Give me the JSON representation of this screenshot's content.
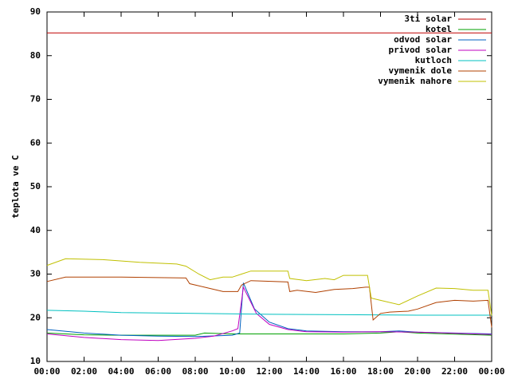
{
  "chart_data": {
    "type": "line",
    "y_label": "teplota ve C",
    "xlim": [
      0,
      24
    ],
    "xticks": [
      {
        "value": 0,
        "label": "00:00"
      },
      {
        "value": 2,
        "label": "02:00"
      },
      {
        "value": 4,
        "label": "04:00"
      },
      {
        "value": 6,
        "label": "06:00"
      },
      {
        "value": 8,
        "label": "08:00"
      },
      {
        "value": 10,
        "label": "10:00"
      },
      {
        "value": 12,
        "label": "12:00"
      },
      {
        "value": 14,
        "label": "14:00"
      },
      {
        "value": 16,
        "label": "16:00"
      },
      {
        "value": 18,
        "label": "18:00"
      },
      {
        "value": 20,
        "label": "20:00"
      },
      {
        "value": 22,
        "label": "22:00"
      },
      {
        "value": 24,
        "label": "00:00"
      }
    ],
    "ylim": [
      10,
      90
    ],
    "yticks": [
      10,
      20,
      30,
      40,
      50,
      60,
      70,
      80,
      90
    ],
    "grid": false,
    "legend": "top-right",
    "series": [
      {
        "name": "3ti solar",
        "color": "#c00000",
        "x": [
          0,
          24
        ],
        "values": [
          85.2,
          85.2
        ]
      },
      {
        "name": "kotel",
        "color": "#00a000",
        "x": [
          0,
          2,
          4,
          6,
          8,
          8.5,
          10,
          12,
          16,
          18,
          19,
          20,
          24
        ],
        "values": [
          16.5,
          16.1,
          16,
          16,
          16,
          16.5,
          16.3,
          16.3,
          16.3,
          16.5,
          16.8,
          16.5,
          16
        ]
      },
      {
        "name": "odvod solar",
        "color": "#0060c0",
        "x": [
          0,
          2,
          4,
          6,
          8,
          10,
          10.4,
          10.6,
          11.2,
          12,
          13,
          14,
          16,
          18,
          19,
          20,
          24
        ],
        "values": [
          17.3,
          16.5,
          16,
          15.8,
          15.7,
          16,
          16.5,
          28,
          22,
          19,
          17.5,
          17,
          16.8,
          16.8,
          17,
          16.7,
          16.3
        ]
      },
      {
        "name": "privod solar",
        "color": "#c000c0",
        "x": [
          0,
          2,
          4,
          6,
          8,
          9,
          10,
          10.3,
          10.6,
          11.3,
          12,
          13,
          14,
          16,
          18,
          20,
          24
        ],
        "values": [
          16.3,
          15.5,
          15,
          14.8,
          15.3,
          15.8,
          17,
          17.5,
          27,
          21,
          18.5,
          17.3,
          16.8,
          16.7,
          16.8,
          16.7,
          16.2
        ]
      },
      {
        "name": "kutloch",
        "color": "#00c0c0",
        "x": [
          0,
          2,
          4,
          8,
          12,
          16,
          20,
          24
        ],
        "values": [
          21.7,
          21.5,
          21.2,
          21,
          20.8,
          20.7,
          20.6,
          20.6
        ]
      },
      {
        "name": "vymenik dole",
        "color": "#b04000",
        "x": [
          0,
          1,
          4,
          7.5,
          7.7,
          8.5,
          9.5,
          10.3,
          10.5,
          11,
          13,
          13.1,
          13.5,
          14.5,
          15.5,
          16.5,
          17.2,
          17.4,
          17.6,
          18,
          18.5,
          19.5,
          20,
          21,
          22,
          23,
          23.8,
          24
        ],
        "values": [
          28.3,
          29.3,
          29.3,
          29.1,
          27.8,
          27,
          26,
          26,
          27.5,
          28.5,
          28.2,
          26,
          26.3,
          25.8,
          26.5,
          26.7,
          27,
          27,
          19.5,
          21,
          21.3,
          21.5,
          22,
          23.5,
          24,
          23.8,
          24,
          17.8
        ]
      },
      {
        "name": "vymenik nahore",
        "color": "#c0c000",
        "x": [
          0,
          1,
          3,
          5,
          7,
          7.5,
          8.2,
          8.8,
          9.5,
          10,
          10.5,
          11,
          13,
          13.1,
          14,
          15,
          15.5,
          16,
          17.3,
          17.5,
          18,
          19,
          20,
          21,
          22,
          23,
          23.8,
          24
        ],
        "values": [
          32,
          33.5,
          33.3,
          32.7,
          32.3,
          31.8,
          30,
          28.7,
          29.3,
          29.3,
          30,
          30.7,
          30.7,
          29,
          28.5,
          29,
          28.7,
          29.7,
          29.7,
          24.5,
          24,
          23,
          25,
          26.8,
          26.7,
          26.3,
          26.3,
          20.5
        ]
      }
    ]
  }
}
